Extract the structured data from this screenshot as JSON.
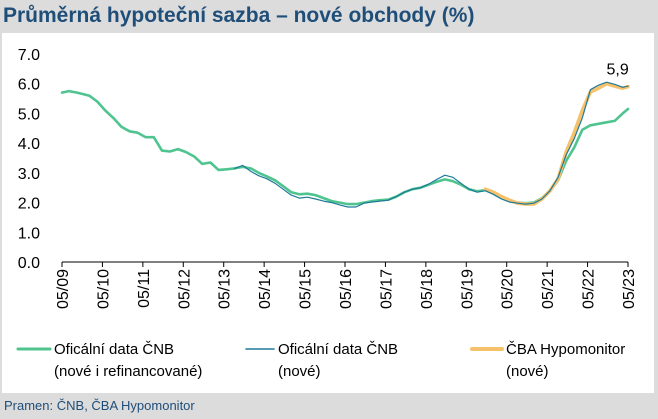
{
  "title": "Průměrná hypoteční sazba – nové obchody (%)",
  "source": "Pramen: ČNB, ČBA Hypomonitor",
  "colors": {
    "title": "#1f4e79",
    "cnb_total": "#4fc48f",
    "cnb_new": "#1f7a9a",
    "hypomonitor": "#f5c26b",
    "background": "#dcdcdc"
  },
  "chart_data": {
    "type": "line",
    "title": "Průměrná hypoteční sazba – nové obchody (%)",
    "ylim": [
      0,
      7
    ],
    "yticks": [
      "0.0",
      "1.0",
      "2.0",
      "3.0",
      "4.0",
      "5.0",
      "6.0",
      "7.0"
    ],
    "xticks": [
      "05/09",
      "05/10",
      "05/11",
      "05/12",
      "05/13",
      "05/14",
      "05/15",
      "05/16",
      "05/17",
      "05/18",
      "05/19",
      "05/20",
      "05/21",
      "05/22",
      "05/23"
    ],
    "grid": false,
    "legend_position": "bottom",
    "annotation": {
      "text": "5,9",
      "x": 2023.3,
      "y": 5.9
    },
    "series": [
      {
        "name": "Oficální data ČNB (nové i refinancované)",
        "legend_lines": [
          "Oficální data ČNB",
          "(nové i refinancované)"
        ],
        "color_key": "cnb_total",
        "x": [
          2009.33,
          2009.5,
          2009.7,
          2010.0,
          2010.2,
          2010.4,
          2010.6,
          2010.8,
          2011.0,
          2011.2,
          2011.4,
          2011.6,
          2011.8,
          2012.0,
          2012.2,
          2012.4,
          2012.6,
          2012.8,
          2013.0,
          2013.2,
          2013.4,
          2013.6,
          2013.8,
          2014.0,
          2014.2,
          2014.4,
          2014.6,
          2014.8,
          2015.0,
          2015.2,
          2015.4,
          2015.6,
          2015.8,
          2016.0,
          2016.2,
          2016.4,
          2016.6,
          2016.8,
          2017.0,
          2017.2,
          2017.4,
          2017.6,
          2017.8,
          2018.0,
          2018.2,
          2018.4,
          2018.6,
          2018.8,
          2019.0,
          2019.2,
          2019.4,
          2019.6,
          2019.8,
          2020.0,
          2020.2,
          2020.4,
          2020.6,
          2020.8,
          2021.0,
          2021.2,
          2021.4,
          2021.6,
          2021.8,
          2022.0,
          2022.2,
          2022.4,
          2022.6,
          2022.8,
          2023.0,
          2023.2,
          2023.33
        ],
        "values": [
          5.7,
          5.75,
          5.7,
          5.6,
          5.4,
          5.1,
          4.85,
          4.55,
          4.4,
          4.35,
          4.2,
          4.2,
          3.75,
          3.72,
          3.8,
          3.7,
          3.55,
          3.3,
          3.35,
          3.1,
          3.12,
          3.15,
          3.2,
          3.15,
          3.0,
          2.88,
          2.75,
          2.55,
          2.35,
          2.28,
          2.3,
          2.25,
          2.15,
          2.05,
          2.0,
          1.95,
          1.95,
          2.0,
          2.05,
          2.08,
          2.1,
          2.2,
          2.35,
          2.45,
          2.5,
          2.6,
          2.7,
          2.78,
          2.72,
          2.6,
          2.45,
          2.38,
          2.42,
          2.3,
          2.15,
          2.05,
          2.0,
          1.98,
          2.0,
          2.15,
          2.4,
          2.75,
          3.4,
          3.85,
          4.45,
          4.6,
          4.65,
          4.7,
          4.75,
          5.0,
          5.15
        ]
      },
      {
        "name": "Oficální data ČNB (nové)",
        "legend_lines": [
          "Oficální data ČNB",
          "(nové)"
        ],
        "color_key": "cnb_new",
        "x": [
          2013.6,
          2013.8,
          2014.0,
          2014.2,
          2014.4,
          2014.6,
          2014.8,
          2015.0,
          2015.2,
          2015.4,
          2015.6,
          2015.8,
          2016.0,
          2016.2,
          2016.4,
          2016.6,
          2016.8,
          2017.0,
          2017.2,
          2017.4,
          2017.6,
          2017.8,
          2018.0,
          2018.2,
          2018.4,
          2018.6,
          2018.8,
          2019.0,
          2019.2,
          2019.4,
          2019.6,
          2019.8,
          2020.0,
          2020.2,
          2020.4,
          2020.6,
          2020.8,
          2021.0,
          2021.2,
          2021.4,
          2021.6,
          2021.8,
          2022.0,
          2022.2,
          2022.4,
          2022.6,
          2022.8,
          2023.0,
          2023.2,
          2023.33
        ],
        "values": [
          3.15,
          3.25,
          3.05,
          2.9,
          2.8,
          2.65,
          2.45,
          2.25,
          2.15,
          2.18,
          2.12,
          2.05,
          2.0,
          1.92,
          1.85,
          1.85,
          1.98,
          2.02,
          2.05,
          2.08,
          2.2,
          2.35,
          2.45,
          2.5,
          2.62,
          2.78,
          2.92,
          2.85,
          2.65,
          2.45,
          2.35,
          2.4,
          2.28,
          2.12,
          2.02,
          1.98,
          1.95,
          1.98,
          2.12,
          2.4,
          2.85,
          3.6,
          4.15,
          4.85,
          5.8,
          5.95,
          6.05,
          5.98,
          5.88,
          5.92
        ]
      },
      {
        "name": "ČBA Hypomonitor (nové)",
        "legend_lines": [
          "ČBA Hypomonitor",
          "(nové)"
        ],
        "color_key": "hypomonitor",
        "x": [
          2019.8,
          2020.0,
          2020.2,
          2020.4,
          2020.6,
          2020.8,
          2021.0,
          2021.2,
          2021.4,
          2021.6,
          2021.8,
          2022.0,
          2022.2,
          2022.4,
          2022.6,
          2022.8,
          2023.0,
          2023.2,
          2023.33
        ],
        "values": [
          2.45,
          2.35,
          2.2,
          2.08,
          1.98,
          1.95,
          1.95,
          2.12,
          2.4,
          2.8,
          3.7,
          4.35,
          5.1,
          5.72,
          5.85,
          6.0,
          5.92,
          5.85,
          5.9
        ]
      }
    ]
  }
}
